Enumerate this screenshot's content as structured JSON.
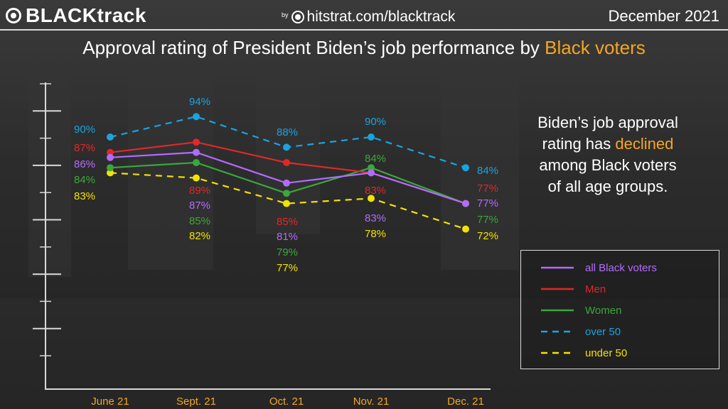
{
  "header": {
    "brand": "BLACKtrack",
    "by_label": "by",
    "site": "hitstrat.com/blacktrack",
    "date": "December 2021"
  },
  "title": {
    "main": "Approval rating of President Biden’s job performance by ",
    "highlight": "Black voters"
  },
  "callout": {
    "line1": "Biden’s job approval",
    "line2_prefix": "rating  has ",
    "line2_highlight": "declined",
    "line3": "among Black voters",
    "line4": "of all age groups."
  },
  "colors": {
    "accent": "#f5a623",
    "all_black_voters": "#b26bff",
    "men": "#e02828",
    "women": "#3aa83a",
    "over_50": "#1aa3e0",
    "under_50": "#f2e200",
    "axis": "#d9d9d9"
  },
  "chart_data": {
    "type": "line",
    "categories": [
      "June 21",
      "Sept. 21",
      "Oct. 21",
      "Nov. 21",
      "Dec. 21"
    ],
    "ylim": [
      0,
      100
    ],
    "series": [
      {
        "key": "all",
        "name": "all Black voters",
        "color": "#b26bff",
        "dash": false,
        "values": [
          86,
          87,
          81,
          83,
          77
        ],
        "labels": [
          "86%",
          "87%",
          "81%",
          "83%",
          "77%"
        ]
      },
      {
        "key": "men",
        "name": "Men",
        "color": "#e02828",
        "dash": false,
        "values": [
          87,
          89,
          85,
          83,
          77
        ],
        "labels": [
          "87%",
          "89%",
          "85%",
          "83%",
          "77%"
        ]
      },
      {
        "key": "women",
        "name": "Women",
        "color": "#3aa83a",
        "dash": false,
        "values": [
          84,
          85,
          79,
          84,
          77
        ],
        "labels": [
          "84%",
          "85%",
          "79%",
          "84%",
          "77%"
        ]
      },
      {
        "key": "over50",
        "name": "over 50",
        "color": "#1aa3e0",
        "dash": true,
        "values": [
          90,
          94,
          88,
          90,
          84
        ],
        "labels": [
          "90%",
          "94%",
          "88%",
          "90%",
          "84%"
        ]
      },
      {
        "key": "under50",
        "name": "under 50",
        "color": "#f2e200",
        "dash": true,
        "values": [
          83,
          82,
          77,
          78,
          72
        ],
        "labels": [
          "83%",
          "82%",
          "77%",
          "78%",
          "72%"
        ]
      }
    ],
    "legend_position": "right",
    "grid": false
  }
}
